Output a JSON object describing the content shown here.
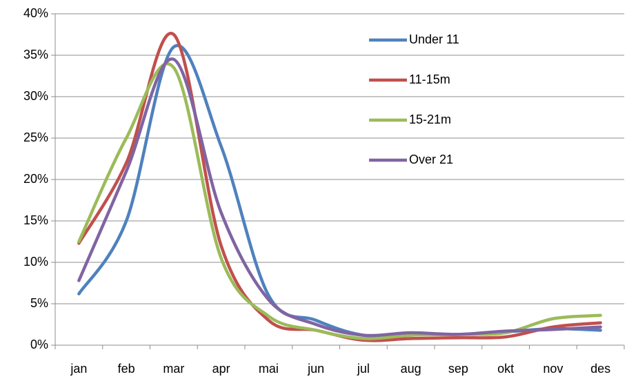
{
  "chart_data": {
    "type": "line",
    "smooth": true,
    "grid": true,
    "legend": "upper right",
    "categories": [
      "jan",
      "feb",
      "mar",
      "apr",
      "mai",
      "jun",
      "jul",
      "aug",
      "sep",
      "okt",
      "nov",
      "des"
    ],
    "series": [
      {
        "name": "Under 11",
        "color": "#4f81bd",
        "values": [
          6.2,
          15,
          36,
          24,
          6,
          3,
          1.2,
          1.3,
          1.3,
          1.6,
          2,
          1.8
        ]
      },
      {
        "name": "11-15m",
        "color": "#c0504d",
        "values": [
          12.3,
          22,
          37.5,
          12,
          3,
          1.8,
          0.6,
          0.8,
          0.9,
          1.0,
          2.2,
          2.7
        ]
      },
      {
        "name": "15-21m",
        "color": "#9bbb59",
        "values": [
          12.5,
          25,
          33.5,
          10.5,
          3.5,
          1.8,
          0.8,
          1.2,
          1.3,
          1.5,
          3.2,
          3.6
        ]
      },
      {
        "name": "Over 21",
        "color": "#8064a2",
        "values": [
          7.8,
          21,
          34.5,
          16,
          5.5,
          2.5,
          1.2,
          1.5,
          1.3,
          1.7,
          1.9,
          2.2
        ]
      }
    ],
    "ylim": [
      0,
      40
    ],
    "yticks": [
      {
        "value": 0,
        "label": "0%"
      },
      {
        "value": 5,
        "label": "5%"
      },
      {
        "value": 10,
        "label": "10%"
      },
      {
        "value": 15,
        "label": "15%"
      },
      {
        "value": 20,
        "label": "20%"
      },
      {
        "value": 25,
        "label": "25%"
      },
      {
        "value": 30,
        "label": "30%"
      },
      {
        "value": 35,
        "label": "35%"
      },
      {
        "value": 40,
        "label": "40%"
      }
    ]
  }
}
